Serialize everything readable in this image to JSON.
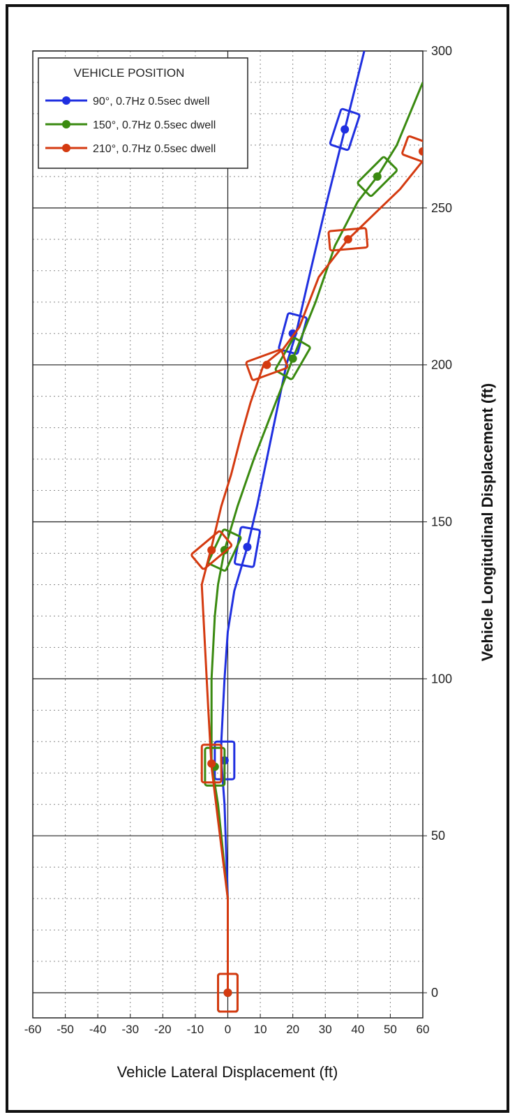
{
  "chart_data": {
    "type": "line",
    "title": "",
    "xlabel": "Vehicle Lateral Displacement (ft)",
    "ylabel": "Vehicle Longitudinal Displacement (ft)",
    "xlim": [
      -60,
      60
    ],
    "ylim": [
      -8,
      300
    ],
    "xticks": [
      -60,
      -50,
      -40,
      -30,
      -20,
      -10,
      0,
      10,
      20,
      30,
      40,
      50,
      60
    ],
    "yticks": [
      0,
      50,
      100,
      150,
      200,
      250,
      300
    ],
    "grid": true,
    "legend": {
      "title": "VEHICLE POSITION",
      "placement": "top-left"
    },
    "series": [
      {
        "name": "90°, 0.7Hz 0.5sec dwell",
        "color": "#1f2fe0",
        "points": [
          [
            0,
            0
          ],
          [
            0,
            20
          ],
          [
            0,
            30
          ],
          [
            -1,
            60
          ],
          [
            -2,
            74
          ],
          [
            -2,
            80
          ],
          [
            -1,
            100
          ],
          [
            0,
            115
          ],
          [
            2,
            128
          ],
          [
            6,
            142
          ],
          [
            9,
            155
          ],
          [
            14,
            180
          ],
          [
            18,
            200
          ],
          [
            21,
            210
          ],
          [
            25,
            228
          ],
          [
            30,
            250
          ],
          [
            36,
            275
          ],
          [
            42,
            300
          ]
        ],
        "markers": [
          [
            0,
            0
          ],
          [
            -1,
            74
          ],
          [
            6,
            142
          ],
          [
            20,
            210
          ],
          [
            36,
            275
          ]
        ],
        "marker_angles_deg": [
          90,
          90,
          80,
          75,
          72
        ]
      },
      {
        "name": "150°, 0.7Hz 0.5sec dwell",
        "color": "#3a8a10",
        "points": [
          [
            0,
            0
          ],
          [
            0,
            20
          ],
          [
            0,
            30
          ],
          [
            -3,
            60
          ],
          [
            -5,
            73
          ],
          [
            -5,
            85
          ],
          [
            -5,
            100
          ],
          [
            -4,
            120
          ],
          [
            -3,
            130
          ],
          [
            -1,
            141
          ],
          [
            3,
            155
          ],
          [
            8,
            170
          ],
          [
            14,
            186
          ],
          [
            20,
            202
          ],
          [
            27,
            220
          ],
          [
            33,
            238
          ],
          [
            40,
            252
          ],
          [
            46,
            260
          ],
          [
            52,
            270
          ],
          [
            60,
            290
          ]
        ],
        "markers": [
          [
            0,
            0
          ],
          [
            -4,
            72
          ],
          [
            -1,
            141
          ],
          [
            20,
            202
          ],
          [
            46,
            260
          ]
        ],
        "marker_angles_deg": [
          90,
          90,
          65,
          60,
          45
        ]
      },
      {
        "name": "210°, 0.7Hz 0.5sec dwell",
        "color": "#d43a10",
        "points": [
          [
            0,
            0
          ],
          [
            0,
            20
          ],
          [
            0,
            30
          ],
          [
            -3,
            55
          ],
          [
            -5,
            72
          ],
          [
            -6,
            90
          ],
          [
            -7,
            110
          ],
          [
            -8,
            130
          ],
          [
            -5,
            142
          ],
          [
            -2,
            155
          ],
          [
            1,
            165
          ],
          [
            4,
            177
          ],
          [
            7,
            188
          ],
          [
            11,
            200
          ],
          [
            17,
            205
          ],
          [
            22,
            212
          ],
          [
            28,
            228
          ],
          [
            37,
            240
          ],
          [
            45,
            248
          ],
          [
            53,
            256
          ],
          [
            60,
            265
          ]
        ],
        "markers": [
          [
            0,
            0
          ],
          [
            -5,
            73
          ],
          [
            -5,
            141
          ],
          [
            12,
            200
          ],
          [
            37,
            240
          ],
          [
            60,
            268
          ]
        ],
        "marker_angles_deg": [
          90,
          90,
          40,
          20,
          5,
          -20
        ]
      }
    ]
  }
}
